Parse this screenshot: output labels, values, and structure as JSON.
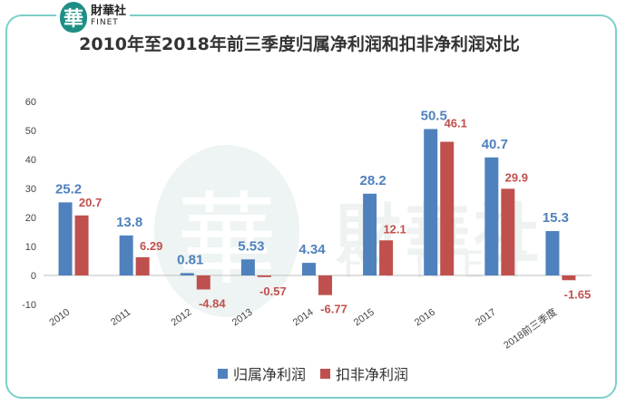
{
  "logo": {
    "mark": "華",
    "cn": "財華社",
    "en": "FINET"
  },
  "watermark": {
    "mark": "華",
    "cn": "財華社",
    "en": "FINET"
  },
  "chart_data": {
    "type": "bar",
    "title": "2010年至2018年前三季度归属净利润和扣非净利润对比",
    "categories": [
      "2010",
      "2011",
      "2012",
      "2013",
      "2014",
      "2015",
      "2016",
      "2017",
      "2018前三季度"
    ],
    "series": [
      {
        "name": "归属净利润",
        "color": "#4f81bd",
        "label_color": "#4f81bd",
        "values": [
          25.2,
          13.8,
          0.81,
          5.53,
          4.34,
          28.2,
          50.5,
          40.7,
          15.3
        ],
        "labels": [
          "25.2",
          "13.8",
          "0.81",
          "5.53",
          "4.34",
          "28.2",
          "50.5",
          "40.7",
          "15.3"
        ]
      },
      {
        "name": "扣非净利润",
        "color": "#c0504d",
        "label_color": "#c0504d",
        "values": [
          20.7,
          6.29,
          -4.84,
          -0.57,
          -6.77,
          12.1,
          46.1,
          29.9,
          -1.65
        ],
        "labels": [
          "20.7",
          "6.29",
          "-4.84",
          "-0.57",
          "-6.77",
          "12.1",
          "46.1",
          "29.9",
          "-1.65"
        ]
      }
    ],
    "ylim": [
      -10,
      60
    ],
    "yticks": [
      "-10",
      "0",
      "10",
      "20",
      "30",
      "40",
      "50",
      "60"
    ],
    "xlabel": "",
    "ylabel": "",
    "legend_position": "bottom"
  }
}
